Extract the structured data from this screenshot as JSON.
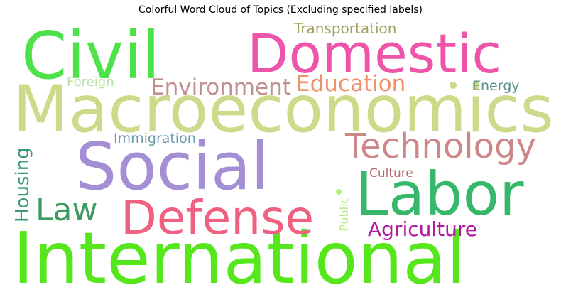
{
  "chart_data": {
    "type": "wordcloud",
    "title": "Colorful Word Cloud of Topics (Excluding specified labels)",
    "words": [
      {
        "text": "International",
        "weight": 100,
        "color": "#56e61c",
        "rotated": false
      },
      {
        "text": "Macroeconomics",
        "weight": 95,
        "color": "#cfd98a",
        "rotated": false
      },
      {
        "text": "Civil",
        "weight": 85,
        "color": "#4ee24a",
        "rotated": false
      },
      {
        "text": "Social",
        "weight": 83,
        "color": "#a48ed4",
        "rotated": false
      },
      {
        "text": "Labor",
        "weight": 80,
        "color": "#35b86a",
        "rotated": false
      },
      {
        "text": "Domestic",
        "weight": 78,
        "color": "#ee55aa",
        "rotated": false
      },
      {
        "text": "Defense",
        "weight": 66,
        "color": "#f06080",
        "rotated": false
      },
      {
        "text": "Technology",
        "weight": 47,
        "color": "#cc8888",
        "rotated": false
      },
      {
        "text": "Law",
        "weight": 43,
        "color": "#3e9a60",
        "rotated": false
      },
      {
        "text": "Environment",
        "weight": 30,
        "color": "#c09090",
        "rotated": false
      },
      {
        "text": "Education",
        "weight": 30,
        "color": "#f0906a",
        "rotated": false
      },
      {
        "text": "Agriculture",
        "weight": 28,
        "color": "#b01aa0",
        "rotated": false
      },
      {
        "text": "Housing",
        "weight": 26,
        "color": "#3c9a78",
        "rotated": true
      },
      {
        "text": "Transportation",
        "weight": 20,
        "color": "#a0a060",
        "rotated": false
      },
      {
        "text": "Immigration",
        "weight": 19,
        "color": "#6a9ab0",
        "rotated": false
      },
      {
        "text": "Energy",
        "weight": 19,
        "color": "#5a9090",
        "rotated": false
      },
      {
        "text": "Foreign",
        "weight": 18,
        "color": "#b6e0a0",
        "rotated": false
      },
      {
        "text": "Culture",
        "weight": 17,
        "color": "#b06a70",
        "rotated": false
      },
      {
        "text": "Public",
        "weight": 15,
        "color": "#b6ec80",
        "rotated": true
      }
    ]
  }
}
